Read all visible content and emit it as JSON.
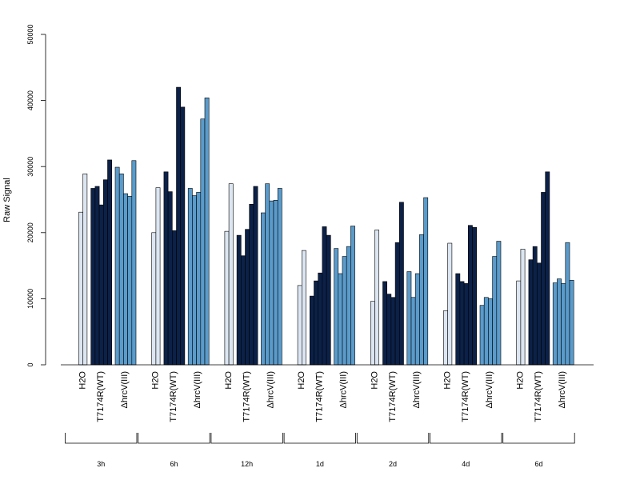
{
  "chart_data": {
    "type": "bar",
    "ylabel": "Raw Signal",
    "ylim": [
      0,
      50000
    ],
    "yticks": [
      0,
      10000,
      20000,
      30000,
      40000,
      50000
    ],
    "grid": false,
    "colors": {
      "H2O": "#dce6f2",
      "T7174R(WT)": "#0c2148",
      "ΔhrcV(III)": "#5a9bcb"
    },
    "condition_labels": [
      "H2O",
      "T7174R(WT)",
      "ΔhrcV(III)"
    ],
    "groups": [
      {
        "time": "3h",
        "H2O": [
          23100,
          28900
        ],
        "T7174R(WT)": [
          26700,
          27000,
          24200,
          28000,
          31000
        ],
        "ΔhrcV(III)": [
          29900,
          28900,
          25900,
          25500,
          30900
        ]
      },
      {
        "time": "6h",
        "H2O": [
          20000,
          26800
        ],
        "T7174R(WT)": [
          29200,
          26200,
          20300,
          42000,
          39000
        ],
        "ΔhrcV(III)": [
          26700,
          25600,
          26100,
          37200,
          40400
        ]
      },
      {
        "time": "12h",
        "H2O": [
          20200,
          27400
        ],
        "T7174R(WT)": [
          19600,
          16500,
          20500,
          24300,
          27000
        ],
        "ΔhrcV(III)": [
          23000,
          27400,
          24800,
          24900,
          26700
        ]
      },
      {
        "time": "1d",
        "H2O": [
          12000,
          17300
        ],
        "T7174R(WT)": [
          10400,
          12700,
          13900,
          20900,
          19600
        ],
        "ΔhrcV(III)": [
          17600,
          13800,
          16400,
          17900,
          21000
        ]
      },
      {
        "time": "2d",
        "H2O": [
          9600,
          20400
        ],
        "T7174R(WT)": [
          12600,
          10700,
          10200,
          18500,
          24600
        ],
        "ΔhrcV(III)": [
          14100,
          10200,
          13800,
          19700,
          25300
        ]
      },
      {
        "time": "4d",
        "H2O": [
          8200,
          18400
        ],
        "T7174R(WT)": [
          13800,
          12600,
          12300,
          21100,
          20800
        ],
        "ΔhrcV(III)": [
          9000,
          10200,
          10000,
          16400,
          18700
        ]
      },
      {
        "time": "6d",
        "H2O": [
          12700,
          17500
        ],
        "T7174R(WT)": [
          15900,
          17900,
          15400,
          26100,
          29200
        ],
        "ΔhrcV(III)": [
          12400,
          13000,
          12300,
          18500,
          12800
        ]
      }
    ]
  }
}
